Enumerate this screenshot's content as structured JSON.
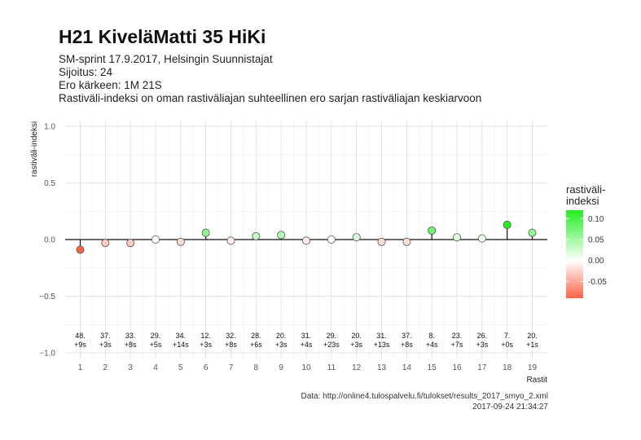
{
  "header": {
    "title": "H21 KiveläMatti 35 HiKi",
    "subtitle_lines": [
      "SM-sprint 17.9.2017, Helsingin Suunnistajat",
      "Sijoitus: 24",
      "Ero kärkeen: 1M 21S",
      "Rastiväli-indeksi on oman rastiväliajan suhteellinen ero sarjan rastiväliajan keskiarvoon"
    ]
  },
  "caption": {
    "source": "Data: http://online4.tulospalvelu.fi/tulokset/results_2017_smyo_2.xml",
    "timestamp": "2017-09-24 21:34:27"
  },
  "legend": {
    "title_line1": "rastiväli-",
    "title_line2": "indeksi",
    "ticks": [
      0.1,
      0.05,
      0.0,
      -0.05
    ],
    "tick_labels": [
      "0.10",
      "0.05",
      "0.00",
      "-0.05"
    ],
    "placement": "right",
    "color_low": "#ff6347",
    "color_mid": "#ffffff",
    "color_high": "#22ee22"
  },
  "chart_data": {
    "type": "scatter",
    "title": "",
    "xlabel": "Rastit",
    "ylabel": "rastiväli-indeksi",
    "ylim": [
      -1.05,
      1.05
    ],
    "xlim": [
      0.4,
      19.6
    ],
    "yticks": [
      -1.0,
      -0.5,
      0.0,
      0.5,
      1.0
    ],
    "ytick_labels": [
      "−1.0",
      "−0.5",
      "0.0",
      "0.5",
      "1.0"
    ],
    "grid": true,
    "baseline": 0.0,
    "color_range": [
      -0.09,
      0.12
    ],
    "x": [
      1,
      2,
      3,
      4,
      5,
      6,
      7,
      8,
      9,
      10,
      11,
      12,
      13,
      14,
      15,
      16,
      17,
      18,
      19
    ],
    "xtick_labels": [
      "1",
      "2",
      "3",
      "4",
      "5",
      "6",
      "7",
      "8",
      "9",
      "10",
      "11",
      "12",
      "13",
      "14",
      "15",
      "16",
      "17",
      "18",
      "19"
    ],
    "values": [
      -0.09,
      -0.03,
      -0.03,
      0.0,
      -0.02,
      0.06,
      -0.01,
      0.03,
      0.04,
      -0.01,
      0.0,
      0.02,
      -0.02,
      -0.02,
      0.08,
      0.02,
      0.01,
      0.13,
      0.06
    ],
    "rank_labels": [
      "48.",
      "37.",
      "33.",
      "29.",
      "34.",
      "12.",
      "32.",
      "28.",
      "20.",
      "31.",
      "29.",
      "20.",
      "31.",
      "37.",
      "8.",
      "23.",
      "26.",
      "7.",
      "20."
    ],
    "diff_labels": [
      "+9s",
      "+3s",
      "+8s",
      "+5s",
      "+14s",
      "+3s",
      "+8s",
      "+6s",
      "+3s",
      "+4s",
      "+23s",
      "+3s",
      "+13s",
      "+8s",
      "+4s",
      "+7s",
      "+3s",
      "+0s",
      "+1s"
    ]
  }
}
